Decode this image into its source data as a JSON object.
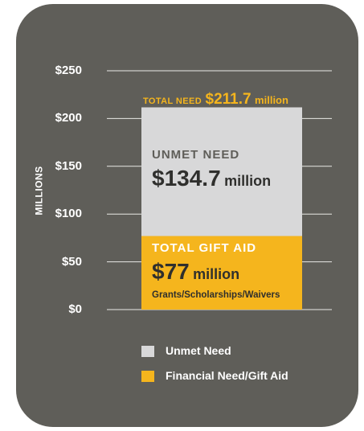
{
  "chart_data": {
    "type": "bar",
    "stacked": true,
    "categories": [
      "Total Need"
    ],
    "series": [
      {
        "name": "Financial Need/Gift Aid",
        "values": [
          77
        ],
        "color": "#f5b51d"
      },
      {
        "name": "Unmet Need",
        "values": [
          134.7
        ],
        "color": "#d8d8d9"
      }
    ],
    "total": 211.7,
    "ylabel": "MILLIONS",
    "ylim": [
      0,
      250
    ],
    "ticks": [
      0,
      50,
      100,
      150,
      200,
      250
    ],
    "tick_labels": [
      "$0",
      "$50",
      "$100",
      "$150",
      "$200",
      "$250"
    ],
    "grid": true,
    "legend_position": "bottom",
    "background": "#5f5e59",
    "annotations": {
      "total_prefix": "TOTAL NEED",
      "total_value": "$211.7",
      "total_unit": "million",
      "unmet_title": "UNMET NEED",
      "unmet_value": "$134.7",
      "unmet_unit": "million",
      "gift_title": "TOTAL GIFT AID",
      "gift_value": "$77",
      "gift_unit": "million",
      "gift_subtitle": "Grants/Scholarships/Waivers"
    },
    "legend": [
      "Unmet Need",
      "Financial Need/Gift Aid"
    ]
  }
}
